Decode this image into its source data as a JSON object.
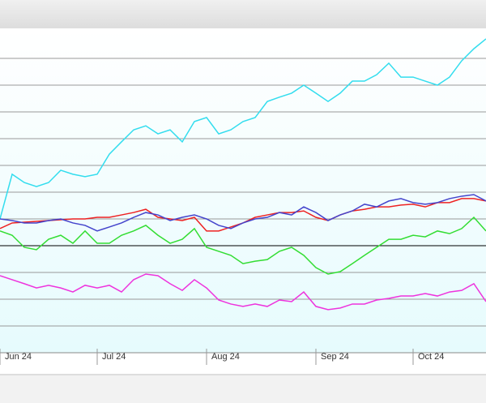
{
  "chart_data": {
    "type": "line",
    "categories": [
      "Jun 24",
      null,
      null,
      null,
      null,
      null,
      null,
      null,
      "Jul 24",
      null,
      null,
      null,
      null,
      null,
      null,
      null,
      null,
      "Aug 24",
      null,
      null,
      null,
      null,
      null,
      null,
      null,
      null,
      "Sep 24",
      null,
      null,
      null,
      null,
      null,
      null,
      null,
      "Oct 24",
      null,
      null,
      null,
      null,
      null,
      null
    ],
    "series": [
      {
        "color": "#33ddee",
        "values": [
          1.0,
          2.67,
          2.36,
          2.21,
          2.36,
          2.82,
          2.67,
          2.58,
          2.67,
          3.42,
          3.88,
          4.33,
          4.48,
          4.18,
          4.33,
          3.88,
          4.64,
          4.79,
          4.18,
          4.33,
          4.64,
          4.79,
          5.39,
          5.55,
          5.7,
          6.0,
          5.7,
          5.39,
          5.7,
          6.15,
          6.15,
          6.39,
          6.82,
          6.3,
          6.3,
          6.15,
          6.0,
          6.3,
          6.91,
          7.36,
          7.73
        ]
      },
      {
        "color": "#ee2222",
        "values": [
          0.64,
          0.85,
          0.88,
          0.91,
          0.94,
          0.97,
          1.0,
          1.0,
          1.06,
          1.06,
          1.15,
          1.24,
          1.36,
          1.06,
          1.0,
          0.94,
          1.06,
          0.55,
          0.55,
          0.7,
          0.85,
          1.06,
          1.15,
          1.24,
          1.24,
          1.3,
          1.06,
          0.94,
          1.15,
          1.3,
          1.36,
          1.45,
          1.45,
          1.52,
          1.55,
          1.45,
          1.61,
          1.61,
          1.76,
          1.76,
          1.67
        ]
      },
      {
        "color": "#4444cc",
        "values": [
          1.0,
          0.94,
          0.85,
          0.85,
          0.94,
          1.0,
          0.85,
          0.76,
          0.55,
          0.7,
          0.85,
          1.06,
          1.24,
          1.15,
          0.94,
          1.06,
          1.15,
          1.0,
          0.76,
          0.64,
          0.85,
          1.0,
          1.06,
          1.24,
          1.15,
          1.45,
          1.24,
          0.94,
          1.15,
          1.3,
          1.55,
          1.45,
          1.67,
          1.76,
          1.61,
          1.55,
          1.61,
          1.76,
          1.85,
          1.91,
          1.67
        ]
      },
      {
        "color": "#33dd33",
        "values": [
          0.55,
          0.39,
          -0.06,
          -0.15,
          0.24,
          0.39,
          0.09,
          0.55,
          0.09,
          0.09,
          0.39,
          0.55,
          0.76,
          0.39,
          0.09,
          0.24,
          0.64,
          -0.06,
          -0.21,
          -0.36,
          -0.67,
          -0.58,
          -0.52,
          -0.21,
          -0.06,
          -0.36,
          -0.82,
          -1.06,
          -0.97,
          -0.67,
          -0.36,
          -0.06,
          0.24,
          0.24,
          0.39,
          0.33,
          0.55,
          0.45,
          0.64,
          1.06,
          0.55
        ]
      },
      {
        "color": "#ee33dd",
        "values": [
          -1.12,
          -1.27,
          -1.42,
          -1.58,
          -1.48,
          -1.58,
          -1.73,
          -1.48,
          -1.58,
          -1.48,
          -1.73,
          -1.27,
          -1.06,
          -1.12,
          -1.42,
          -1.67,
          -1.27,
          -1.58,
          -2.03,
          -2.18,
          -2.27,
          -2.18,
          -2.27,
          -2.03,
          -2.09,
          -1.73,
          -2.27,
          -2.39,
          -2.33,
          -2.18,
          -2.18,
          -2.03,
          -1.97,
          -1.88,
          -1.88,
          -1.79,
          -1.88,
          -1.73,
          -1.67,
          -1.42,
          -2.09
        ]
      }
    ],
    "ylim": [
      -4,
      8
    ],
    "yticks": [
      -3,
      -2,
      -1,
      0,
      1,
      2,
      3,
      4,
      5,
      6,
      7
    ],
    "grid": true
  }
}
